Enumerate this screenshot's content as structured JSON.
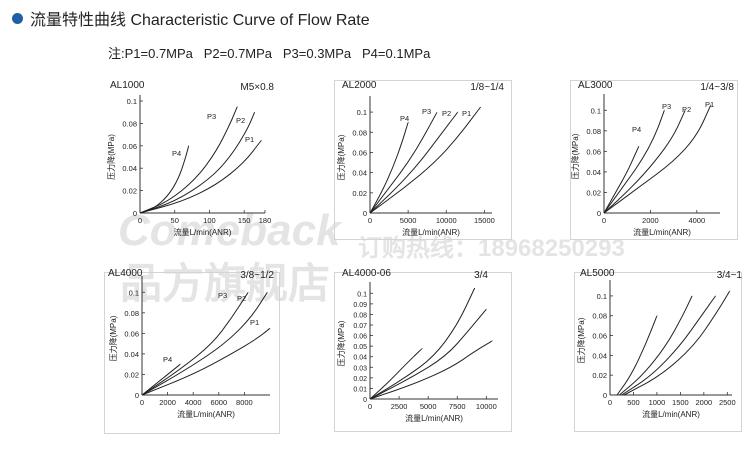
{
  "header": {
    "title": "流量特性曲线 Characteristic Curve of Flow Rate",
    "note": "注:P1=0.7MPa   P2=0.7MPa   P3=0.3MPa   P4=0.1MPa"
  },
  "watermark": {
    "brand": "Comeback",
    "phone": "订购热线：18968250293",
    "store": "品方旗舰店"
  },
  "colors": {
    "bullet": "#1f5fa8",
    "axis": "#333333",
    "curve": "#222222",
    "frame": "#d4d4d4"
  },
  "chart_data": [
    {
      "type": "line",
      "title": "AL1000",
      "subtitle": "M5×0.8",
      "xlabel": "流量L/min(ANR)",
      "ylabel": "压力降(MPa)",
      "xlim": [
        0,
        180
      ],
      "ylim": [
        0,
        0.1
      ],
      "xticks": [
        0,
        50,
        100,
        150,
        180
      ],
      "xticklabels": [
        "0",
        "50",
        "100",
        "150",
        "180"
      ],
      "yticks": [
        0,
        0.02,
        0.04,
        0.06,
        0.08,
        0.1
      ],
      "yticklabels": [
        "0",
        "0.02",
        "0.04",
        "0.06",
        "0.08",
        "0.1"
      ],
      "series": [
        {
          "name": "P4",
          "x": [
            0,
            20,
            40,
            55,
            65,
            70
          ],
          "y": [
            0,
            0.004,
            0.015,
            0.03,
            0.048,
            0.06
          ]
        },
        {
          "name": "P3",
          "x": [
            0,
            40,
            80,
            110,
            130,
            140
          ],
          "y": [
            0,
            0.01,
            0.03,
            0.055,
            0.08,
            0.095
          ]
        },
        {
          "name": "P2",
          "x": [
            0,
            50,
            100,
            130,
            155,
            165
          ],
          "y": [
            0,
            0.01,
            0.03,
            0.05,
            0.075,
            0.09
          ]
        },
        {
          "name": "P1",
          "x": [
            0,
            60,
            110,
            150,
            175
          ],
          "y": [
            0,
            0.01,
            0.025,
            0.045,
            0.065
          ]
        }
      ]
    },
    {
      "type": "line",
      "title": "AL2000",
      "subtitle": "1/8~1/4",
      "xlabel": "流量L/min(ANR)",
      "ylabel": "压力降(MPa)",
      "xlim": [
        0,
        16000
      ],
      "ylim": [
        0,
        0.11
      ],
      "xticks": [
        0,
        5000,
        10000,
        15000
      ],
      "xticklabels": [
        "0",
        "5000",
        "10000",
        "15000"
      ],
      "yticks": [
        0,
        0.02,
        0.04,
        0.06,
        0.08,
        0.1
      ],
      "yticklabels": [
        "0",
        "0.02",
        "0.04",
        "0.06",
        "0.08",
        "0.1"
      ],
      "series": [
        {
          "name": "P4",
          "x": [
            0,
            1500,
            3000,
            4200,
            5000
          ],
          "y": [
            0,
            0.02,
            0.045,
            0.07,
            0.09
          ]
        },
        {
          "name": "P3",
          "x": [
            0,
            2500,
            5000,
            7000,
            8800
          ],
          "y": [
            0,
            0.025,
            0.05,
            0.075,
            0.1
          ]
        },
        {
          "name": "P2",
          "x": [
            0,
            3500,
            6500,
            9000,
            11500
          ],
          "y": [
            0,
            0.025,
            0.05,
            0.075,
            0.1
          ]
        },
        {
          "name": "P1",
          "x": [
            0,
            4500,
            8500,
            11500,
            14500
          ],
          "y": [
            0,
            0.025,
            0.05,
            0.075,
            0.105
          ]
        }
      ]
    },
    {
      "type": "line",
      "title": "AL3000",
      "subtitle": "1/4~3/8",
      "xlabel": "流量L/min(ANR)",
      "ylabel": "压力降(MPa)",
      "xlim": [
        0,
        5000
      ],
      "ylim": [
        0,
        0.11
      ],
      "xticks": [
        0,
        2000,
        4000
      ],
      "xticklabels": [
        "0",
        "2000",
        "4000"
      ],
      "yticks": [
        0,
        0.02,
        0.04,
        0.06,
        0.08,
        0.1
      ],
      "yticklabels": [
        "0",
        "0.02",
        "0.04",
        "0.06",
        "0.08",
        "0.1"
      ],
      "series": [
        {
          "name": "P4",
          "x": [
            0,
            500,
            1000,
            1300,
            1500
          ],
          "y": [
            0,
            0.02,
            0.04,
            0.055,
            0.065
          ]
        },
        {
          "name": "P3",
          "x": [
            0,
            800,
            1600,
            2200,
            2600
          ],
          "y": [
            0,
            0.025,
            0.05,
            0.075,
            0.1
          ]
        },
        {
          "name": "P2",
          "x": [
            0,
            1200,
            2200,
            3000,
            3500
          ],
          "y": [
            0,
            0.025,
            0.05,
            0.075,
            0.1
          ]
        },
        {
          "name": "P1",
          "x": [
            0,
            1500,
            3000,
            4000,
            4600
          ],
          "y": [
            0,
            0.025,
            0.05,
            0.075,
            0.105
          ]
        }
      ]
    },
    {
      "type": "line",
      "title": "AL4000",
      "subtitle": "3/8~1/2",
      "xlabel": "流量L/min(ANR)",
      "ylabel": "压力降(MPa)",
      "xlim": [
        0,
        10000
      ],
      "ylim": [
        0,
        0.11
      ],
      "xticks": [
        0,
        2000,
        4000,
        6000,
        8000
      ],
      "xticklabels": [
        "0",
        "2000",
        "4000",
        "6000",
        "8000"
      ],
      "yticks": [
        0,
        0.02,
        0.04,
        0.06,
        0.08,
        0.1
      ],
      "yticklabels": [
        "0",
        "0.02",
        "0.04",
        "0.06",
        "0.08",
        "0.1"
      ],
      "series": [
        {
          "name": "P4",
          "x": [
            0,
            1000,
            2000,
            3000
          ],
          "y": [
            0,
            0.01,
            0.02,
            0.03
          ]
        },
        {
          "name": "P3",
          "x": [
            0,
            3000,
            5500,
            7000,
            8300
          ],
          "y": [
            0,
            0.025,
            0.05,
            0.075,
            0.1
          ]
        },
        {
          "name": "P2",
          "x": [
            0,
            3500,
            6500,
            8500,
            9800
          ],
          "y": [
            0,
            0.025,
            0.05,
            0.075,
            0.1
          ]
        },
        {
          "name": "P1",
          "x": [
            0,
            4000,
            7000,
            9000,
            10000
          ],
          "y": [
            0,
            0.02,
            0.04,
            0.055,
            0.065
          ]
        }
      ]
    },
    {
      "type": "line",
      "title": "AL4000-06",
      "subtitle": "3/4",
      "xlabel": "流量L/min(ANR)",
      "ylabel": "压力降(MPa)",
      "xlim": [
        0,
        11000
      ],
      "ylim": [
        0,
        0.105
      ],
      "xticks": [
        0,
        2500,
        5000,
        7500,
        10000
      ],
      "xticklabels": [
        "0",
        "2500",
        "5000",
        "7500",
        "10000"
      ],
      "yticks": [
        0,
        0.01,
        0.02,
        0.03,
        0.04,
        0.05,
        0.06,
        0.07,
        0.08,
        0.09,
        0.1
      ],
      "yticklabels": [
        "0",
        "0.01",
        "0.02",
        "0.03",
        "0.04",
        "0.05",
        "0.06",
        "0.07",
        "0.08",
        "0.09",
        "0.1"
      ],
      "series": [
        {
          "name": "",
          "x": [
            0,
            1500,
            3000,
            4500
          ],
          "y": [
            0,
            0.015,
            0.032,
            0.048
          ]
        },
        {
          "name": "",
          "x": [
            0,
            3000,
            5500,
            7500,
            9000
          ],
          "y": [
            0,
            0.02,
            0.04,
            0.07,
            0.105
          ]
        },
        {
          "name": "",
          "x": [
            0,
            3500,
            6500,
            8500,
            10000
          ],
          "y": [
            0,
            0.02,
            0.04,
            0.065,
            0.085
          ]
        },
        {
          "name": "",
          "x": [
            0,
            4000,
            7000,
            9000,
            10500
          ],
          "y": [
            0,
            0.015,
            0.03,
            0.045,
            0.055
          ]
        }
      ]
    },
    {
      "type": "line",
      "title": "AL5000",
      "subtitle": "3/4~1",
      "xlabel": "流量L/min(ANR)",
      "ylabel": "压力降(MPa)",
      "xlim": [
        0,
        2600
      ],
      "ylim": [
        0,
        0.11
      ],
      "xticks": [
        0,
        500,
        1000,
        1500,
        2000,
        2500
      ],
      "xticklabels": [
        "0",
        "500",
        "1000",
        "1500",
        "2000",
        "2500"
      ],
      "yticks": [
        0,
        0.02,
        0.04,
        0.06,
        0.08,
        0.1
      ],
      "yticklabels": [
        "0",
        "0.02",
        "0.04",
        "0.06",
        "0.08",
        "0.1"
      ],
      "series": [
        {
          "name": "",
          "x": [
            150,
            450,
            750,
            1000
          ],
          "y": [
            0,
            0.02,
            0.05,
            0.08
          ]
        },
        {
          "name": "",
          "x": [
            200,
            700,
            1200,
            1550,
            1750
          ],
          "y": [
            0,
            0.02,
            0.05,
            0.08,
            0.1
          ]
        },
        {
          "name": "",
          "x": [
            250,
            900,
            1500,
            1950,
            2250
          ],
          "y": [
            0,
            0.02,
            0.05,
            0.08,
            0.1
          ]
        },
        {
          "name": "",
          "x": [
            300,
            1100,
            1800,
            2300,
            2550
          ],
          "y": [
            0,
            0.02,
            0.05,
            0.085,
            0.105
          ]
        }
      ]
    }
  ]
}
